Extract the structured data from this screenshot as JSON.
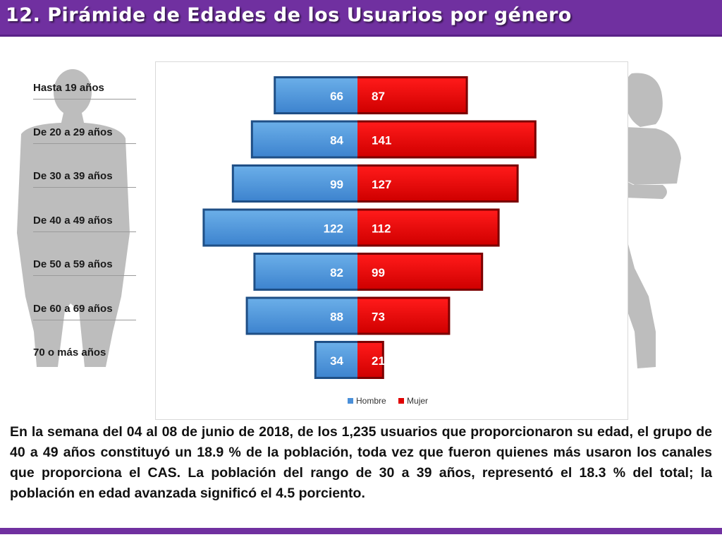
{
  "header": {
    "title": "12. Pirámide de Edades de los Usuarios por género"
  },
  "colors": {
    "header": "#7030a0",
    "hombre": "#4a90d9",
    "hombre_dark": "#2c5f99",
    "mujer": "#e00000",
    "mujer_dark": "#8a0000",
    "silhouette": "#b8b8b8"
  },
  "chart_data": {
    "type": "bar",
    "orientation": "horizontal-pyramid",
    "categories": [
      "Hasta 19 años",
      "De 20 a 29 años",
      "De 30 a 39 años",
      "De 40 a 49 años",
      "De 50 a 59 años",
      "De 60 a 69 años",
      "70 o más años"
    ],
    "series": [
      {
        "name": "Hombre",
        "values": [
          66,
          84,
          99,
          122,
          82,
          88,
          34
        ]
      },
      {
        "name": "Mujer",
        "values": [
          87,
          141,
          127,
          112,
          99,
          73,
          21
        ]
      }
    ],
    "legend": "bottom",
    "grid": false
  },
  "summary": "En la semana del 04 al 08 de junio de 2018, de los 1,235 usuarios que proporcionaron su edad, el grupo de 40 a 49 años constituyó un 18.9 % de la población, toda vez que fueron quienes más usaron los canales que proporciona el CAS. La población del rango de 30 a 39 años, representó el 18.3 % del total; la población en edad avanzada significó el 4.5 porciento."
}
